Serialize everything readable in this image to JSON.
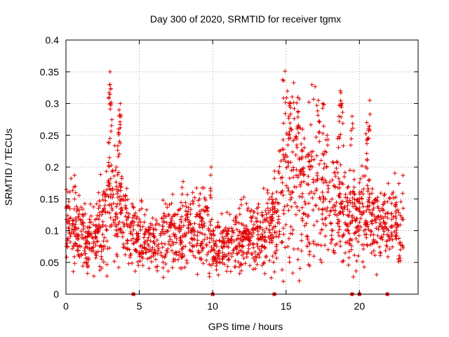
{
  "chart_data": {
    "type": "scatter",
    "title": "Day 300 of 2020, SRMTID for receiver tgmx",
    "xlabel": "GPS time / hours",
    "ylabel": "SRMTID / TECUs",
    "xlim": [
      0,
      24
    ],
    "ylim": [
      0,
      0.4
    ],
    "x_ticks": [
      0,
      5,
      10,
      15,
      20
    ],
    "y_ticks": [
      0,
      0.05,
      0.1,
      0.15,
      0.2,
      0.25,
      0.3,
      0.35,
      0.4
    ],
    "x_tick_labels": [
      "0",
      "5",
      "10",
      "15",
      "20"
    ],
    "y_tick_labels": [
      "0",
      "0.05",
      "0.1",
      "0.15",
      "0.2",
      "0.25",
      "0.3",
      "0.35",
      "0.4"
    ],
    "grid": true,
    "marker": "+",
    "series_color": "#e00000",
    "data_gap_markers_x": [
      4.6,
      10.0,
      14.2,
      19.5,
      20.0,
      21.9
    ],
    "series": [
      {
        "name": "SRMTID",
        "trend": [
          [
            0.0,
            0.12
          ],
          [
            0.5,
            0.12
          ],
          [
            1.0,
            0.1
          ],
          [
            1.5,
            0.085
          ],
          [
            2.0,
            0.085
          ],
          [
            2.5,
            0.12
          ],
          [
            3.0,
            0.14
          ],
          [
            3.5,
            0.14
          ],
          [
            4.0,
            0.12
          ],
          [
            4.5,
            0.1
          ],
          [
            5.0,
            0.09
          ],
          [
            6.0,
            0.08
          ],
          [
            7.0,
            0.1
          ],
          [
            8.0,
            0.1
          ],
          [
            9.0,
            0.1
          ],
          [
            9.5,
            0.11
          ],
          [
            10.0,
            0.07
          ],
          [
            11.0,
            0.075
          ],
          [
            12.0,
            0.085
          ],
          [
            13.0,
            0.09
          ],
          [
            14.0,
            0.1
          ],
          [
            14.5,
            0.13
          ],
          [
            15.0,
            0.2
          ],
          [
            15.5,
            0.2
          ],
          [
            16.0,
            0.16
          ],
          [
            17.0,
            0.16
          ],
          [
            18.0,
            0.14
          ],
          [
            18.5,
            0.15
          ],
          [
            19.0,
            0.13
          ],
          [
            20.0,
            0.12
          ],
          [
            21.0,
            0.12
          ],
          [
            22.0,
            0.11
          ],
          [
            23.0,
            0.11
          ]
        ],
        "spikes": [
          [
            3.0,
            0.35
          ],
          [
            3.0,
            0.33
          ],
          [
            3.05,
            0.3
          ],
          [
            3.7,
            0.3
          ],
          [
            3.65,
            0.28
          ],
          [
            3.6,
            0.26
          ],
          [
            3.0,
            0.245
          ],
          [
            9.9,
            0.2
          ],
          [
            15.8,
            0.31
          ],
          [
            15.3,
            0.3
          ],
          [
            15.2,
            0.28
          ],
          [
            17.2,
            0.305
          ],
          [
            17.5,
            0.3
          ],
          [
            18.7,
            0.32
          ],
          [
            18.8,
            0.3
          ],
          [
            18.6,
            0.28
          ],
          [
            20.7,
            0.305
          ],
          [
            20.5,
            0.27
          ],
          [
            20.6,
            0.26
          ],
          [
            19.5,
            0.28
          ],
          [
            16.5,
            0.22
          ],
          [
            17.8,
            0.25
          ]
        ]
      }
    ]
  }
}
